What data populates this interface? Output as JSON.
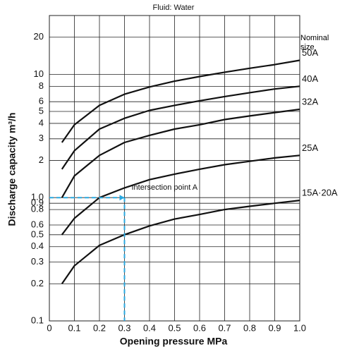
{
  "chart_data": {
    "type": "line",
    "title": "Fluid: Water",
    "x_label": "Opening pressure MPa",
    "y_label": "Discharge capacity m³/h",
    "legend_title": "Nominal size",
    "log_y": true,
    "grid": true,
    "x": [
      0.05,
      0.1,
      0.2,
      0.3,
      0.4,
      0.5,
      0.6,
      0.7,
      0.8,
      0.9,
      1.0
    ],
    "series": [
      {
        "name": "50A",
        "color": "#111111",
        "values": [
          2.8,
          3.9,
          5.6,
          6.9,
          7.9,
          8.8,
          9.6,
          10.4,
          11.2,
          12.0,
          13
        ]
      },
      {
        "name": "40A",
        "color": "#111111",
        "values": [
          1.7,
          2.4,
          3.6,
          4.4,
          5.1,
          5.6,
          6.1,
          6.6,
          7.1,
          7.6,
          8.0
        ]
      },
      {
        "name": "32A",
        "color": "#111111",
        "values": [
          1.0,
          1.5,
          2.2,
          2.8,
          3.2,
          3.6,
          3.9,
          4.3,
          4.6,
          4.9,
          5.2
        ]
      },
      {
        "name": "25A",
        "color": "#111111",
        "values": [
          0.5,
          0.68,
          1.0,
          1.2,
          1.4,
          1.55,
          1.7,
          1.85,
          1.97,
          2.1,
          2.2
        ]
      },
      {
        "name": "15A·20A",
        "color": "#111111",
        "values": [
          0.2,
          0.28,
          0.41,
          0.5,
          0.59,
          0.67,
          0.73,
          0.8,
          0.85,
          0.9,
          0.95
        ]
      }
    ],
    "annotation": {
      "text": "Intersection point A",
      "x": 0.3,
      "y": 1.0,
      "color": "#29a8e0"
    },
    "xlim": [
      0,
      1.0
    ],
    "ylim": [
      0.1,
      30
    ],
    "xticks": [
      0,
      0.1,
      0.2,
      0.3,
      0.4,
      0.5,
      0.6,
      0.7,
      0.8,
      0.9,
      {
        "value": 1.0,
        "label": "1.0"
      }
    ],
    "yticks": [
      0.1,
      0.2,
      0.3,
      0.4,
      0.5,
      0.6,
      0.8,
      0.9,
      {
        "value": 1.0,
        "label": "1.0"
      },
      2,
      3,
      4,
      5,
      6,
      8,
      10,
      20
    ]
  }
}
